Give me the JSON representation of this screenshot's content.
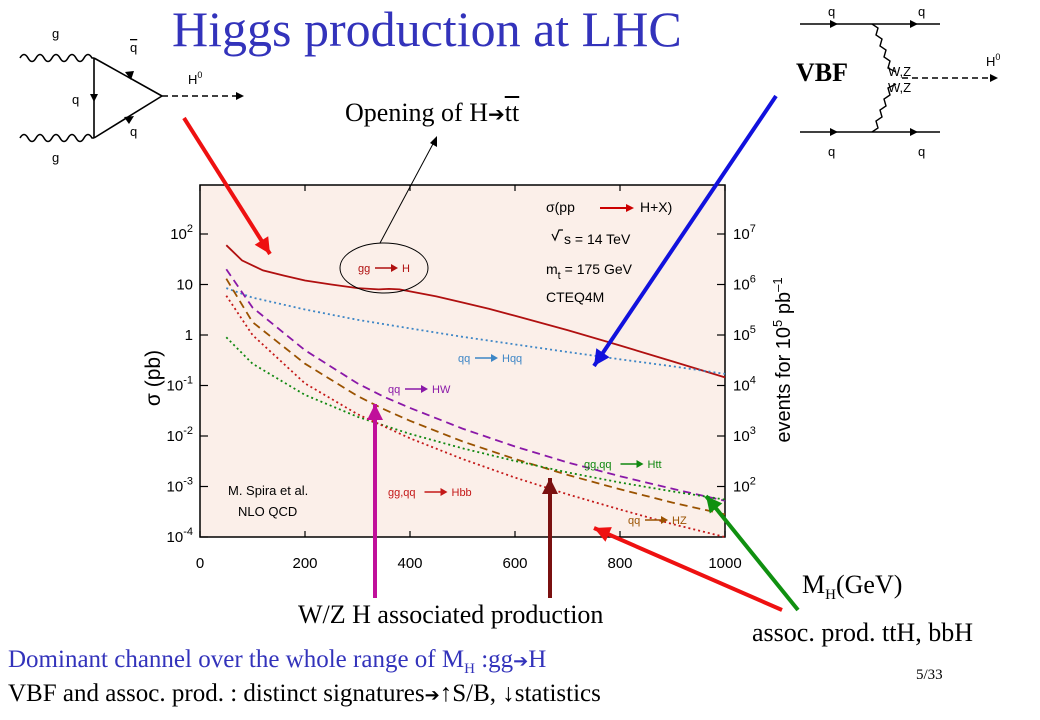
{
  "slide": {
    "title": "Higgs production at LHC",
    "opening_prefix": "Opening of H",
    "opening_suffix": "tt",
    "vbf_label": "VBF",
    "mh_prefix": "M",
    "mh_sub": "H",
    "mh_suffix": "(GeV)",
    "wzh_label": "W/Z H associated production",
    "assoc_label": "assoc. prod. ttH, bbH",
    "dominant_prefix": "Dominant channel over the whole range of M",
    "dominant_sub": "H",
    "dominant_mid": " :gg",
    "dominant_suffix": "H",
    "vbf_line_prefix": "VBF and assoc. prod. : distinct signatures",
    "vbf_line_suffix": "↑S/B, ↓statistics",
    "page_number": "5/33",
    "arrow_glyph": "➔"
  },
  "diagrams": {
    "ggf": {
      "g_top": "g",
      "g_bottom": "g",
      "q_left": "q",
      "qbar": "q",
      "q_bottom": "q",
      "h": "H",
      "h_sup": "0"
    },
    "vbf": {
      "q_tl": "q",
      "q_tr": "q",
      "q_bl": "q",
      "q_br": "q",
      "wz1": "W,Z",
      "wz2": "W,Z",
      "h": "H",
      "h_sup": "0"
    }
  },
  "chart_data": {
    "type": "line",
    "x_ticks": [
      "0",
      "200",
      "400",
      "600",
      "800",
      "1000"
    ],
    "xlim": [
      0,
      1000
    ],
    "ylabel": "σ (pb)",
    "ylim_log10": [
      -4,
      2.7
    ],
    "y_ticks": [
      {
        "base": "10",
        "exp": "-4",
        "log": -4
      },
      {
        "base": "10",
        "exp": "-3",
        "log": -3
      },
      {
        "base": "10",
        "exp": "-2",
        "log": -2
      },
      {
        "base": "10",
        "exp": "-1",
        "log": -1
      },
      {
        "base": "1",
        "exp": "",
        "log": 0
      },
      {
        "base": "10",
        "exp": "",
        "log": 1
      },
      {
        "base": "10",
        "exp": "2",
        "log": 2
      }
    ],
    "y2label_prefix": "events for 10",
    "y2label_exp": "5",
    "y2label_suffix": " pb",
    "y2label_exp2": "–1",
    "y2_ticks": [
      {
        "base": "10",
        "exp": "2",
        "log": -3
      },
      {
        "base": "10",
        "exp": "3",
        "log": -2
      },
      {
        "base": "10",
        "exp": "4",
        "log": -1
      },
      {
        "base": "10",
        "exp": "5",
        "log": 0
      },
      {
        "base": "10",
        "exp": "6",
        "log": 1
      },
      {
        "base": "10",
        "exp": "7",
        "log": 2
      }
    ],
    "info_lines": [
      "σ(pp",
      "H+X)",
      "s = 14 TeV",
      "m",
      "t",
      " = 175 GeV",
      "CTEQ4M"
    ],
    "credit_lines": [
      "M. Spira et al.",
      "NLO  QCD"
    ],
    "series": [
      {
        "name": "gg → H",
        "label_a": "gg",
        "label_b": "H",
        "color": "#b01010",
        "dash": "",
        "x": [
          50,
          80,
          120,
          160,
          200,
          250,
          300,
          340,
          360,
          380,
          400,
          450,
          500,
          550,
          600,
          700,
          800,
          900,
          1000
        ],
        "y": [
          60,
          30,
          19,
          15,
          12,
          10,
          8.5,
          8.0,
          8.2,
          8.0,
          7.3,
          5.8,
          4.4,
          3.3,
          2.4,
          1.25,
          0.62,
          0.3,
          0.145
        ]
      },
      {
        "name": "qq → Hqq",
        "label_a": "qq",
        "label_b": "Hqq",
        "color": "#3d86c6",
        "dash": "2,3",
        "x": [
          50,
          100,
          200,
          300,
          400,
          500,
          600,
          700,
          800,
          900,
          1000
        ],
        "y": [
          8.5,
          5.5,
          3.2,
          2.0,
          1.35,
          0.92,
          0.65,
          0.46,
          0.33,
          0.24,
          0.17
        ]
      },
      {
        "name": "qq → HW",
        "label_a": "qq",
        "label_b": "HW",
        "color": "#8a18a8",
        "dash": "8,5",
        "x": [
          50,
          100,
          200,
          300,
          350,
          400,
          500,
          600,
          700,
          800,
          900,
          1000
        ],
        "y": [
          20,
          3.5,
          0.5,
          0.11,
          0.06,
          0.036,
          0.014,
          0.0062,
          0.003,
          0.0016,
          0.0009,
          0.00052
        ]
      },
      {
        "name": "qq → HZ",
        "label_a": "qq",
        "label_b": "HZ",
        "color": "#9a5200",
        "dash": "8,5",
        "x": [
          50,
          100,
          200,
          300,
          350,
          400,
          500,
          600,
          700,
          800,
          900,
          1000
        ],
        "y": [
          13,
          1.8,
          0.27,
          0.062,
          0.034,
          0.02,
          0.0078,
          0.0035,
          0.0017,
          0.00088,
          0.00048,
          0.00028
        ]
      },
      {
        "name": "gg,qq → Htt",
        "label_a": "gg,qq",
        "label_b": "Htt",
        "color": "#108810",
        "dash": "2,3",
        "x": [
          50,
          100,
          200,
          300,
          400,
          500,
          600,
          700,
          800,
          900,
          1000
        ],
        "y": [
          0.9,
          0.27,
          0.065,
          0.024,
          0.011,
          0.0057,
          0.0032,
          0.0019,
          0.0012,
          0.0008,
          0.00055
        ]
      },
      {
        "name": "gg,qq → Hbb",
        "label_a": "gg,qq",
        "label_b": "Hbb",
        "color": "#c41818",
        "dash": "2,3",
        "x": [
          50,
          100,
          200,
          300,
          400,
          500,
          600,
          700,
          800,
          900,
          1000
        ],
        "y": [
          6.0,
          1.0,
          0.11,
          0.027,
          0.009,
          0.0035,
          0.0015,
          0.0007,
          0.00035,
          0.00018,
          0.0001
        ]
      }
    ]
  },
  "annotation_colors": {
    "gg": "#ee1111",
    "vbf": "#1111dd",
    "wh": "#c0109a",
    "zh": "#7a1010",
    "htt": "#109010",
    "hbb": "#ee1111"
  }
}
